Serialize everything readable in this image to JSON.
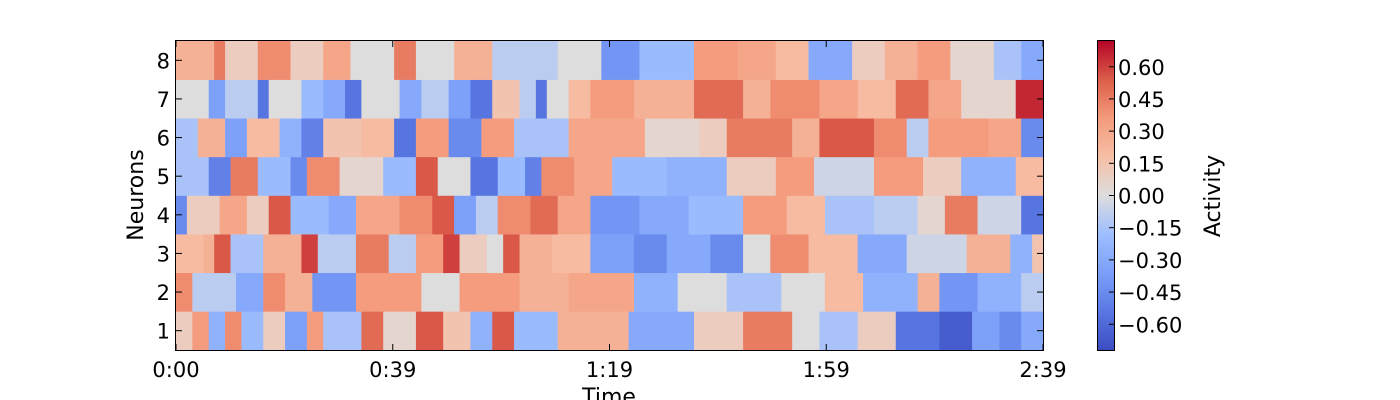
{
  "chart_data": {
    "type": "heatmap",
    "xlabel": "Time",
    "ylabel": "Neurons",
    "x_tick_labels": [
      "0:00",
      "0:39",
      "1:19",
      "1:59",
      "2:39"
    ],
    "x_range_seconds": [
      0,
      159
    ],
    "y_categories": [
      "1",
      "2",
      "3",
      "4",
      "5",
      "6",
      "7",
      "8"
    ],
    "colorbar": {
      "label": "Activity",
      "range": [
        -0.72,
        0.72
      ],
      "ticks": [
        "0.60",
        "0.45",
        "0.30",
        "0.15",
        "0.00",
        "−0.15",
        "−0.30",
        "−0.45",
        "−0.60"
      ],
      "tick_values": [
        0.6,
        0.45,
        0.3,
        0.15,
        0.0,
        -0.15,
        -0.3,
        -0.45,
        -0.6
      ],
      "colormap": "coolwarm",
      "colors": {
        "low": "#3b4cc0",
        "mid": "#dddddd",
        "high": "#b40426"
      }
    },
    "rows": [
      {
        "neuron": "1",
        "segments": [
          [
            0,
            0.1
          ],
          [
            3,
            0.35
          ],
          [
            6,
            -0.25
          ],
          [
            9,
            0.4
          ],
          [
            12,
            -0.2
          ],
          [
            16,
            0.1
          ],
          [
            20,
            -0.35
          ],
          [
            24,
            0.35
          ],
          [
            27,
            -0.15
          ],
          [
            34,
            0.5
          ],
          [
            38,
            0.05
          ],
          [
            44,
            0.55
          ],
          [
            49,
            0.15
          ],
          [
            54,
            -0.25
          ],
          [
            58,
            0.55
          ],
          [
            62,
            -0.2
          ],
          [
            70,
            0.25
          ],
          [
            83,
            -0.3
          ],
          [
            95,
            0.1
          ],
          [
            104,
            0.45
          ],
          [
            113,
            0.0
          ],
          [
            118,
            -0.15
          ],
          [
            125,
            0.1
          ],
          [
            132,
            -0.55
          ],
          [
            140,
            -0.65
          ],
          [
            146,
            -0.35
          ],
          [
            151,
            -0.45
          ],
          [
            155,
            -0.3
          ]
        ]
      },
      {
        "neuron": "2",
        "segments": [
          [
            0,
            0.4
          ],
          [
            3,
            -0.1
          ],
          [
            11,
            -0.3
          ],
          [
            16,
            0.4
          ],
          [
            20,
            0.25
          ],
          [
            25,
            -0.4
          ],
          [
            33,
            0.35
          ],
          [
            45,
            0.0
          ],
          [
            52,
            0.35
          ],
          [
            63,
            0.25
          ],
          [
            72,
            0.3
          ],
          [
            84,
            -0.25
          ],
          [
            92,
            0.0
          ],
          [
            101,
            -0.15
          ],
          [
            111,
            0.0
          ],
          [
            119,
            0.2
          ],
          [
            126,
            -0.25
          ],
          [
            136,
            0.25
          ],
          [
            140,
            -0.4
          ],
          [
            147,
            -0.25
          ],
          [
            155,
            -0.1
          ]
        ]
      },
      {
        "neuron": "3",
        "segments": [
          [
            0,
            0.2
          ],
          [
            5,
            0.25
          ],
          [
            7,
            0.55
          ],
          [
            10,
            -0.15
          ],
          [
            16,
            0.25
          ],
          [
            23,
            0.6
          ],
          [
            26,
            -0.1
          ],
          [
            33,
            0.45
          ],
          [
            39,
            -0.1
          ],
          [
            44,
            0.35
          ],
          [
            49,
            0.6
          ],
          [
            52,
            0.1
          ],
          [
            57,
            0.0
          ],
          [
            60,
            0.55
          ],
          [
            63,
            0.25
          ],
          [
            69,
            0.2
          ],
          [
            76,
            -0.35
          ],
          [
            84,
            -0.45
          ],
          [
            90,
            -0.3
          ],
          [
            98,
            -0.45
          ],
          [
            104,
            0.0
          ],
          [
            109,
            0.4
          ],
          [
            116,
            0.2
          ],
          [
            125,
            -0.3
          ],
          [
            134,
            -0.05
          ],
          [
            145,
            0.25
          ],
          [
            153,
            -0.25
          ],
          [
            157,
            0.15
          ]
        ]
      },
      {
        "neuron": "4",
        "segments": [
          [
            0,
            -0.45
          ],
          [
            2,
            0.1
          ],
          [
            8,
            0.3
          ],
          [
            13,
            0.1
          ],
          [
            17,
            0.55
          ],
          [
            21,
            -0.2
          ],
          [
            28,
            -0.3
          ],
          [
            33,
            0.3
          ],
          [
            41,
            0.4
          ],
          [
            47,
            0.55
          ],
          [
            51,
            -0.35
          ],
          [
            55,
            -0.1
          ],
          [
            59,
            0.4
          ],
          [
            65,
            0.5
          ],
          [
            70,
            0.3
          ],
          [
            76,
            -0.4
          ],
          [
            85,
            -0.3
          ],
          [
            94,
            -0.2
          ],
          [
            104,
            0.35
          ],
          [
            112,
            0.2
          ],
          [
            119,
            -0.15
          ],
          [
            128,
            -0.1
          ],
          [
            136,
            0.05
          ],
          [
            141,
            0.45
          ],
          [
            147,
            -0.05
          ],
          [
            155,
            -0.55
          ]
        ]
      },
      {
        "neuron": "5",
        "segments": [
          [
            0,
            -0.15
          ],
          [
            6,
            -0.5
          ],
          [
            10,
            0.45
          ],
          [
            15,
            -0.2
          ],
          [
            21,
            -0.45
          ],
          [
            24,
            0.4
          ],
          [
            30,
            0.05
          ],
          [
            38,
            -0.2
          ],
          [
            44,
            0.55
          ],
          [
            48,
            0.0
          ],
          [
            54,
            -0.55
          ],
          [
            59,
            -0.2
          ],
          [
            64,
            -0.5
          ],
          [
            67,
            0.4
          ],
          [
            73,
            0.3
          ],
          [
            80,
            -0.2
          ],
          [
            90,
            -0.25
          ],
          [
            101,
            0.1
          ],
          [
            110,
            0.35
          ],
          [
            117,
            -0.05
          ],
          [
            128,
            0.35
          ],
          [
            137,
            0.1
          ],
          [
            144,
            -0.25
          ],
          [
            154,
            0.2
          ]
        ]
      },
      {
        "neuron": "6",
        "segments": [
          [
            0,
            -0.15
          ],
          [
            4,
            0.25
          ],
          [
            9,
            -0.35
          ],
          [
            13,
            0.2
          ],
          [
            19,
            -0.25
          ],
          [
            23,
            -0.5
          ],
          [
            27,
            0.15
          ],
          [
            34,
            0.2
          ],
          [
            40,
            -0.55
          ],
          [
            44,
            0.35
          ],
          [
            50,
            -0.45
          ],
          [
            56,
            0.35
          ],
          [
            62,
            -0.15
          ],
          [
            72,
            0.3
          ],
          [
            86,
            0.05
          ],
          [
            96,
            0.1
          ],
          [
            101,
            0.45
          ],
          [
            113,
            0.25
          ],
          [
            118,
            0.55
          ],
          [
            128,
            0.4
          ],
          [
            134,
            -0.1
          ],
          [
            138,
            0.35
          ],
          [
            149,
            0.3
          ],
          [
            155,
            -0.45
          ]
        ]
      },
      {
        "neuron": "7",
        "segments": [
          [
            0,
            0.0
          ],
          [
            6,
            -0.35
          ],
          [
            9,
            -0.1
          ],
          [
            15,
            -0.55
          ],
          [
            17,
            0.0
          ],
          [
            23,
            -0.2
          ],
          [
            27,
            -0.3
          ],
          [
            31,
            -0.55
          ],
          [
            34,
            0.0
          ],
          [
            41,
            -0.3
          ],
          [
            45,
            -0.1
          ],
          [
            50,
            -0.35
          ],
          [
            54,
            -0.55
          ],
          [
            58,
            0.15
          ],
          [
            63,
            -0.1
          ],
          [
            66,
            -0.55
          ],
          [
            68,
            0.0
          ],
          [
            72,
            0.2
          ],
          [
            76,
            0.35
          ],
          [
            84,
            0.25
          ],
          [
            95,
            0.5
          ],
          [
            104,
            0.25
          ],
          [
            109,
            0.4
          ],
          [
            118,
            0.3
          ],
          [
            125,
            0.2
          ],
          [
            132,
            0.5
          ],
          [
            138,
            0.3
          ],
          [
            144,
            0.05
          ],
          [
            154,
            0.65
          ]
        ]
      },
      {
        "neuron": "8",
        "segments": [
          [
            0,
            0.25
          ],
          [
            7,
            0.45
          ],
          [
            9,
            0.1
          ],
          [
            15,
            0.4
          ],
          [
            21,
            0.1
          ],
          [
            27,
            0.3
          ],
          [
            32,
            0.0
          ],
          [
            40,
            0.45
          ],
          [
            44,
            0.0
          ],
          [
            51,
            0.25
          ],
          [
            58,
            -0.1
          ],
          [
            70,
            0.0
          ],
          [
            78,
            -0.4
          ],
          [
            85,
            -0.2
          ],
          [
            95,
            0.35
          ],
          [
            103,
            0.3
          ],
          [
            110,
            0.2
          ],
          [
            116,
            -0.3
          ],
          [
            124,
            0.1
          ],
          [
            130,
            0.25
          ],
          [
            136,
            0.35
          ],
          [
            142,
            0.05
          ],
          [
            150,
            -0.15
          ],
          [
            155,
            -0.3
          ]
        ]
      }
    ]
  }
}
